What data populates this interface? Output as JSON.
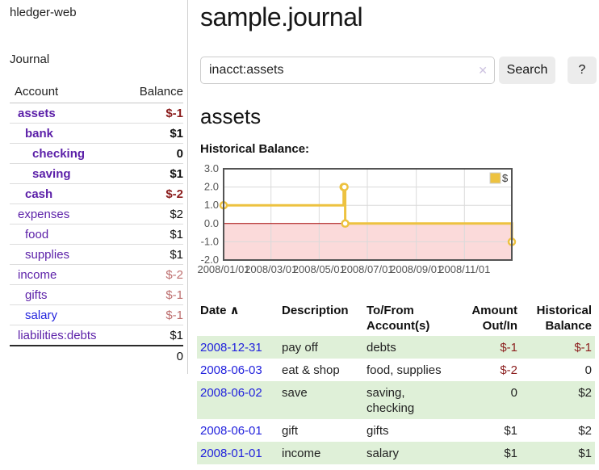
{
  "brand": "hledger-web",
  "colors": {
    "purple": "#5b1fa8",
    "blue": "#2222dd",
    "neg_strong": "#8b1d1d",
    "neg_faded": "#bd6e6e",
    "row_green": "#dff0d8",
    "accent_gold": "#edc240"
  },
  "sidebar": {
    "journal_label": "Journal",
    "accounts_table": {
      "account_header": "Account",
      "balance_header": "Balance",
      "rows": [
        {
          "account": "assets",
          "balance": "$-1",
          "level": 1,
          "bold": true,
          "neg": "strong",
          "color": "purple"
        },
        {
          "account": "bank",
          "balance": "$1",
          "level": 2,
          "bold": true,
          "neg": "none",
          "color": "purple"
        },
        {
          "account": "checking",
          "balance": "0",
          "level": 3,
          "bold": true,
          "neg": "none",
          "color": "purple"
        },
        {
          "account": "saving",
          "balance": "$1",
          "level": 3,
          "bold": true,
          "neg": "none",
          "color": "purple"
        },
        {
          "account": "cash",
          "balance": "$-2",
          "level": 2,
          "bold": true,
          "neg": "strong",
          "color": "purple"
        },
        {
          "account": "expenses",
          "balance": "$2",
          "level": 1,
          "bold": false,
          "neg": "none",
          "color": "purple"
        },
        {
          "account": "food",
          "balance": "$1",
          "level": 2,
          "bold": false,
          "neg": "none",
          "color": "purple"
        },
        {
          "account": "supplies",
          "balance": "$1",
          "level": 2,
          "bold": false,
          "neg": "none",
          "color": "purple"
        },
        {
          "account": "income",
          "balance": "$-2",
          "level": 1,
          "bold": false,
          "neg": "faded",
          "color": "purple"
        },
        {
          "account": "gifts",
          "balance": "$-1",
          "level": 2,
          "bold": false,
          "neg": "faded",
          "color": "purple"
        },
        {
          "account": "salary",
          "balance": "$-1",
          "level": 2,
          "bold": false,
          "neg": "faded",
          "color": "blue"
        },
        {
          "account": "liabilities:debts",
          "balance": "$1",
          "level": 1,
          "bold": false,
          "neg": "none",
          "color": "purple"
        }
      ],
      "total": "0"
    }
  },
  "main": {
    "title": "sample.journal",
    "search": {
      "value": "inacct:assets",
      "clear_icon": "✕",
      "search_button": "Search",
      "help_button": "?"
    },
    "account_heading": "assets",
    "section_label": "Historical Balance:"
  },
  "chart_data": {
    "type": "line",
    "step": true,
    "title": "Historical Balance",
    "x_range": [
      "2008-01-01",
      "2008-12-31"
    ],
    "ylim": [
      -2,
      3
    ],
    "yticks": [
      3,
      2,
      1,
      0,
      -1,
      -2
    ],
    "xticks": [
      {
        "label": "2008/01/01",
        "date": "2008-01-01"
      },
      {
        "label": "2008/03/01",
        "date": "2008-03-01"
      },
      {
        "label": "2008/05/01",
        "date": "2008-05-01"
      },
      {
        "label": "2008/07/01",
        "date": "2008-07-01"
      },
      {
        "label": "2008/09/01",
        "date": "2008-09-01"
      },
      {
        "label": "2008/11/01",
        "date": "2008-11-01"
      }
    ],
    "series": [
      {
        "name": "$",
        "color": "#edc240",
        "points": [
          {
            "date": "2008-01-01",
            "value": 1
          },
          {
            "date": "2008-06-01",
            "value": 2
          },
          {
            "date": "2008-06-02",
            "value": 2
          },
          {
            "date": "2008-06-03",
            "value": 0
          },
          {
            "date": "2008-12-31",
            "value": -1
          }
        ]
      }
    ],
    "negative_region_color": "#fbdada",
    "zero_line_color": "#a40000",
    "grid_color": "#dadada",
    "border_color": "#545454",
    "legend": {
      "position": "top-right",
      "label": "$"
    }
  },
  "register": {
    "headers": {
      "date": "Date",
      "sort_indicator": "∧",
      "description": "Description",
      "tofrom_line1": "To/From",
      "tofrom_line2": "Account(s)",
      "amount_line1": "Amount",
      "amount_line2": "Out/In",
      "historical_line1": "Historical",
      "historical_line2": "Balance"
    },
    "rows": [
      {
        "date": "2008-12-31",
        "description": "pay off",
        "accounts": "debts",
        "wrap": false,
        "amount": "$-1",
        "amount_neg": true,
        "balance": "$-1",
        "balance_neg": true,
        "highlight": true
      },
      {
        "date": "2008-06-03",
        "description": "eat & shop",
        "accounts": "food, supplies",
        "wrap": false,
        "amount": "$-2",
        "amount_neg": true,
        "balance": "0",
        "balance_neg": false,
        "highlight": false
      },
      {
        "date": "2008-06-02",
        "description": "save",
        "accounts": "saving, checking",
        "wrap": true,
        "amount": "0",
        "amount_neg": false,
        "balance": "$2",
        "balance_neg": false,
        "highlight": true
      },
      {
        "date": "2008-06-01",
        "description": "gift",
        "accounts": "gifts",
        "wrap": false,
        "amount": "$1",
        "amount_neg": false,
        "balance": "$2",
        "balance_neg": false,
        "highlight": false
      },
      {
        "date": "2008-01-01",
        "description": "income",
        "accounts": "salary",
        "wrap": false,
        "amount": "$1",
        "amount_neg": false,
        "balance": "$1",
        "balance_neg": false,
        "highlight": true
      }
    ]
  }
}
